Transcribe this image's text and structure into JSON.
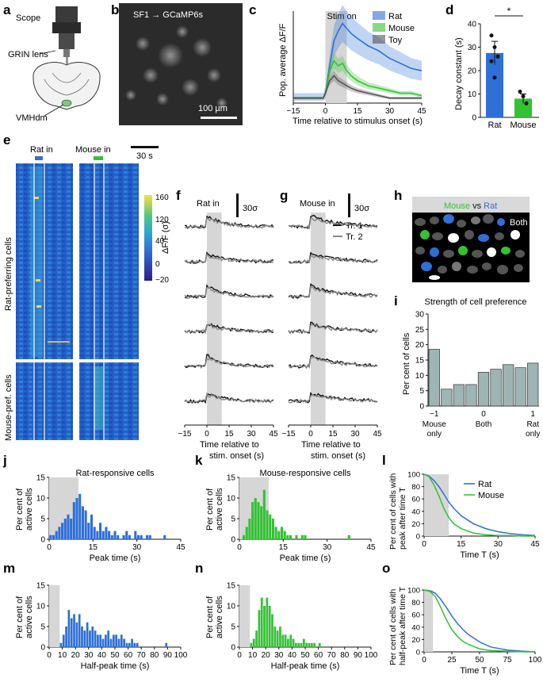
{
  "panel_letters": {
    "a": "a",
    "b": "b",
    "c": "c",
    "d": "d",
    "e": "e",
    "f": "f",
    "g": "g",
    "h": "h",
    "i": "i",
    "j": "j",
    "k": "k",
    "l": "l",
    "m": "m",
    "n": "n",
    "o": "o"
  },
  "panel_a": {
    "scope": "Scope",
    "grin": "GRIN lens",
    "region": "VMHdm"
  },
  "panel_b": {
    "label": "SF1 → GCaMP6s",
    "scalebar": "100 µm"
  },
  "panel_e": {
    "rat_in": "Rat in",
    "mouse_in": "Mouse in",
    "time_bar": "30 s",
    "rat_cells": "Rat-preferring cells",
    "mouse_cells": "Mouse-pref. cells",
    "cbar_label": "ΔF/F (σ)",
    "cbar_ticks": [
      "160",
      "120",
      "80",
      "40",
      "0",
      "−20"
    ]
  },
  "panel_f": {
    "title": "Rat in",
    "scale": "30σ",
    "xlabel": [
      "Time relative to",
      "stim. onset (s)"
    ],
    "legend": [
      "Tr. 1",
      "Tr. 2"
    ]
  },
  "panel_g": {
    "title": "Mouse in",
    "scale": "30σ",
    "xlabel": [
      "Time relative to",
      "stim. onset (s)"
    ]
  },
  "panel_h": {
    "mouse": "Mouse",
    "vs": " vs ",
    "rat": "Rat",
    "both": "Both"
  },
  "colors": {
    "rat": "#2f6fd6",
    "mouse": "#33c233",
    "toy": "#555555",
    "gray_shade": "#d6d6d6",
    "heat_low": "#2a1f8a",
    "heat_mid": "#2aa6d0",
    "heat_high": "#f8e23a",
    "bar_i": "#9fb4b4"
  },
  "chart_data": [
    {
      "id": "c",
      "type": "line",
      "title": "Stim on",
      "xlabel": "Time relative to stimulus onset (s)",
      "ylabel": "Pop. average ΔF/F",
      "x_ticks": [
        "−15",
        "0",
        "15",
        "30",
        "45"
      ],
      "xlim": [
        -15,
        45
      ],
      "ylim": [
        -2,
        35
      ],
      "series": [
        {
          "name": "Rat",
          "x": [
            -15,
            -5,
            -1,
            0,
            2,
            4,
            6,
            8,
            10,
            12,
            15,
            20,
            25,
            30,
            35,
            40,
            45
          ],
          "y": [
            0,
            0,
            0,
            2,
            13,
            23,
            27,
            30,
            28,
            26,
            24,
            21,
            19,
            16,
            14,
            12,
            11
          ]
        },
        {
          "name": "Mouse",
          "x": [
            -15,
            -5,
            -1,
            0,
            2,
            4,
            6,
            8,
            10,
            12,
            15,
            20,
            25,
            30,
            35,
            40,
            45
          ],
          "y": [
            0,
            0,
            0,
            2,
            11,
            15,
            13,
            14,
            11,
            9,
            7,
            5,
            4,
            3,
            2,
            2,
            1
          ]
        },
        {
          "name": "Toy",
          "x": [
            -15,
            -5,
            -1,
            0,
            2,
            4,
            6,
            8,
            10,
            12,
            15,
            20,
            25,
            30,
            35,
            40,
            45
          ],
          "y": [
            0,
            0,
            0,
            2,
            7,
            9,
            7,
            6,
            5,
            4,
            3,
            2,
            1,
            0,
            0,
            0,
            0
          ]
        }
      ]
    },
    {
      "id": "d",
      "type": "bar",
      "categories": [
        "Rat",
        "Mouse"
      ],
      "values": [
        27.5,
        8
      ],
      "errors": [
        5,
        2
      ],
      "ylabel": "Decay constant (s)",
      "ylim": [
        0,
        40
      ],
      "y_ticks": [
        "0",
        "10",
        "20",
        "30",
        "40"
      ],
      "points": [
        [
          35,
          30,
          26,
          24,
          17
        ],
        [
          11,
          9,
          6
        ]
      ],
      "annotation": "*"
    },
    {
      "id": "i",
      "type": "bar",
      "title": "Strength of cell preference",
      "values": [
        18.5,
        5.5,
        7,
        7,
        11,
        12,
        13.5,
        12.5,
        14
      ],
      "ylabel": "Per cent of cells",
      "ylim": [
        0,
        30
      ],
      "y_ticks": [
        "0",
        "5",
        "10",
        "15",
        "20",
        "25",
        "30"
      ],
      "x_ticks": [
        "−1",
        "0",
        "1"
      ],
      "x_tick_sub": [
        "Mouse\nonly",
        "Both",
        "Rat\nonly"
      ]
    },
    {
      "id": "j",
      "type": "bar",
      "title": "Rat-responsive cells",
      "bin_width": 1,
      "x_start": 0,
      "values": [
        1,
        1,
        2,
        3,
        4,
        5,
        6,
        5,
        9,
        10,
        11,
        8,
        7,
        4,
        6,
        3,
        2,
        4,
        2,
        3,
        2,
        1,
        2,
        1,
        0,
        1,
        2,
        1,
        0,
        2,
        1,
        1,
        0,
        1,
        1,
        0,
        0,
        0,
        0,
        1,
        0,
        0,
        0,
        0,
        0
      ],
      "xlabel": "Peak time (s)",
      "ylabel": "Per cent of active cells",
      "xlim": [
        0,
        45
      ],
      "ylim": [
        0,
        15
      ],
      "x_ticks": [
        "0",
        "15",
        "30",
        "45"
      ],
      "y_ticks": [
        "0",
        "5",
        "10",
        "15"
      ],
      "shade": [
        0,
        10
      ]
    },
    {
      "id": "k",
      "type": "bar",
      "title": "Mouse-responsive cells",
      "bin_width": 1,
      "x_start": 0,
      "values": [
        0,
        1,
        3,
        5,
        9,
        10,
        9,
        8,
        12,
        7,
        6,
        5,
        3,
        2,
        3,
        2,
        1,
        1,
        0,
        1,
        0,
        1,
        1,
        0,
        0,
        0,
        0,
        0,
        0,
        0,
        0,
        0,
        0,
        0,
        0,
        0,
        0,
        1,
        0,
        0,
        0,
        0,
        0,
        0,
        0
      ],
      "xlabel": "Peak time (s)",
      "ylabel": "Per cent of active cells",
      "xlim": [
        0,
        45
      ],
      "ylim": [
        0,
        15
      ],
      "x_ticks": [
        "0",
        "15",
        "30",
        "45"
      ],
      "y_ticks": [
        "0",
        "5",
        "10",
        "15"
      ],
      "shade": [
        0,
        10
      ]
    },
    {
      "id": "l",
      "type": "line",
      "xlabel": "Time T (s)",
      "ylabel": "Per cent of cells with peak after time T",
      "xlim": [
        0,
        45
      ],
      "ylim": [
        0,
        100
      ],
      "x_ticks": [
        "0",
        "15",
        "30",
        "45"
      ],
      "y_ticks": [
        "0",
        "20",
        "40",
        "60",
        "80",
        "100"
      ],
      "shade": [
        0,
        10
      ],
      "series": [
        {
          "name": "Rat",
          "x": [
            0,
            2,
            4,
            6,
            8,
            10,
            12,
            15,
            20,
            25,
            30,
            35,
            40,
            45
          ],
          "y": [
            100,
            97,
            90,
            80,
            68,
            55,
            45,
            33,
            20,
            12,
            7,
            4,
            2,
            1
          ]
        },
        {
          "name": "Mouse",
          "x": [
            0,
            2,
            4,
            6,
            8,
            10,
            12,
            15,
            20,
            25,
            30,
            35,
            40,
            45
          ],
          "y": [
            100,
            96,
            83,
            65,
            45,
            30,
            20,
            12,
            5,
            2,
            1,
            1,
            0,
            0
          ]
        }
      ]
    },
    {
      "id": "m",
      "type": "bar",
      "bin_width": 2,
      "x_start": 0,
      "values": [
        0,
        0,
        0,
        0,
        1,
        3,
        5,
        9,
        7,
        8,
        6,
        8,
        5,
        4,
        6,
        4,
        5,
        4,
        3,
        3,
        2,
        3,
        4,
        2,
        3,
        3,
        2,
        3,
        2,
        1,
        1,
        2,
        1,
        1,
        0,
        0,
        0,
        0,
        0,
        0,
        0,
        0,
        0,
        0,
        1,
        0,
        0,
        0,
        0,
        0
      ],
      "xlabel": "Half-peak time (s)",
      "ylabel": "Per cent of active cells",
      "xlim": [
        0,
        100
      ],
      "ylim": [
        0,
        15
      ],
      "x_ticks": [
        "0",
        "10",
        "20",
        "30",
        "40",
        "50",
        "60",
        "70",
        "80",
        "90",
        "100"
      ],
      "y_ticks": [
        "0",
        "5",
        "10",
        "15"
      ],
      "shade": [
        0,
        8
      ]
    },
    {
      "id": "n",
      "type": "bar",
      "bin_width": 2,
      "x_start": 0,
      "values": [
        0,
        0,
        0,
        0,
        1,
        2,
        4,
        9,
        12,
        10,
        12,
        10,
        8,
        5,
        4,
        5,
        3,
        3,
        2,
        3,
        2,
        1,
        1,
        1,
        2,
        1,
        1,
        1,
        1,
        0,
        1,
        0,
        0,
        0,
        0,
        0,
        0,
        0,
        0,
        0,
        0,
        0,
        0,
        0,
        0,
        0,
        0,
        0,
        0,
        0
      ],
      "xlabel": "Half-peak time (s)",
      "ylabel": "Per cent of active cells",
      "xlim": [
        0,
        100
      ],
      "ylim": [
        0,
        15
      ],
      "x_ticks": [
        "0",
        "10",
        "20",
        "30",
        "40",
        "50",
        "60",
        "70",
        "80",
        "90",
        "100"
      ],
      "y_ticks": [
        "0",
        "5",
        "10",
        "15"
      ],
      "shade": [
        0,
        8
      ]
    },
    {
      "id": "o",
      "type": "line",
      "xlabel": "Time T (s)",
      "ylabel": "Per cent of cells with half-peak after time T",
      "xlim": [
        0,
        100
      ],
      "ylim": [
        0,
        100
      ],
      "x_ticks": [
        "0",
        "25",
        "50",
        "75",
        "100"
      ],
      "y_ticks": [
        "0",
        "20",
        "40",
        "60",
        "80",
        "100"
      ],
      "shade": [
        0,
        8
      ],
      "series": [
        {
          "name": "Rat",
          "x": [
            0,
            5,
            10,
            15,
            20,
            25,
            30,
            35,
            40,
            50,
            60,
            75,
            90,
            100
          ],
          "y": [
            100,
            99,
            95,
            85,
            72,
            58,
            46,
            36,
            28,
            16,
            8,
            3,
            1,
            0
          ]
        },
        {
          "name": "Mouse",
          "x": [
            0,
            5,
            10,
            15,
            20,
            25,
            30,
            35,
            40,
            50,
            60,
            75,
            90,
            100
          ],
          "y": [
            100,
            98,
            90,
            72,
            52,
            36,
            25,
            17,
            12,
            5,
            2,
            1,
            0,
            0
          ]
        }
      ]
    }
  ]
}
